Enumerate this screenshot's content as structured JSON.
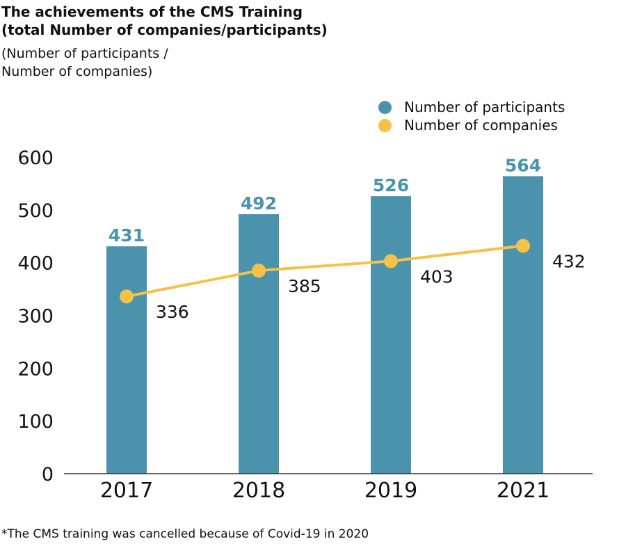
{
  "title_lines": [
    "The achievements of the CMS Training",
    "(total Number of companies/participants)"
  ],
  "subtitle_lines": [
    "(Number of participants /",
    "Number of companies)"
  ],
  "footnote": "*The CMS training was cancelled because of Covid-19 in 2020",
  "colors": {
    "participants": "#4b93ad",
    "companies": "#f5c248",
    "axis": "#333333"
  },
  "legend": [
    {
      "label": "Number of participants",
      "series": "participants"
    },
    {
      "label": "Number of companies",
      "series": "companies"
    }
  ],
  "chart_data": {
    "type": "bar",
    "categories": [
      "2017",
      "2018",
      "2019",
      "2021"
    ],
    "series": [
      {
        "name": "Number of participants",
        "type": "bar",
        "values": [
          431,
          492,
          526,
          564
        ]
      },
      {
        "name": "Number of companies",
        "type": "line",
        "values": [
          336,
          385,
          403,
          432
        ]
      }
    ],
    "ylim": [
      0,
      600
    ],
    "yticks": [
      0,
      100,
      200,
      300,
      400,
      500,
      600
    ],
    "grid": false,
    "legend_position": "top-right"
  }
}
